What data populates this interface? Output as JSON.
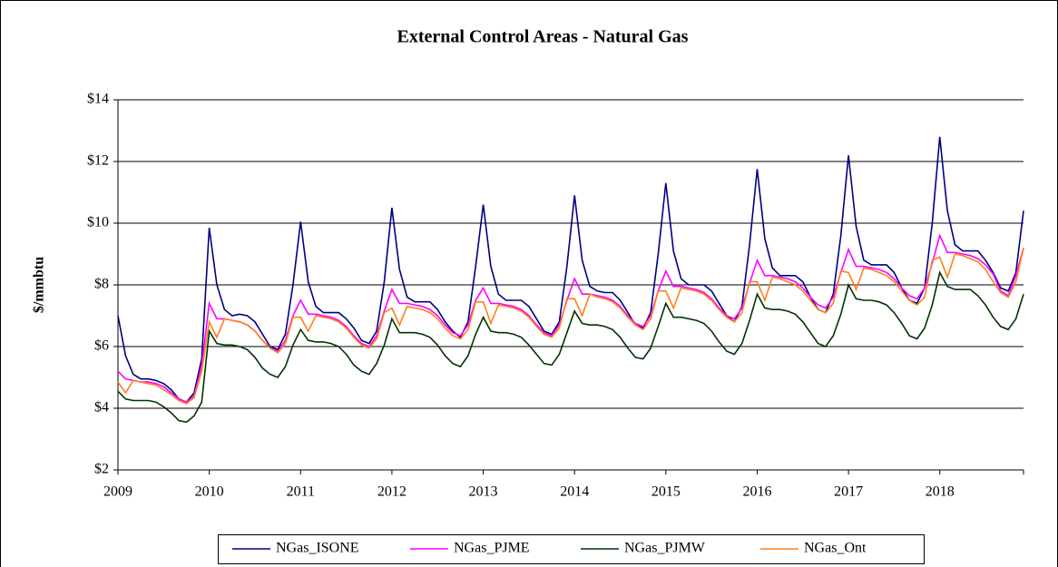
{
  "chart_data": {
    "type": "line",
    "title": "External Control Areas - Natural Gas",
    "y_label": "$/mmbtu",
    "categories": [
      "2009",
      null,
      null,
      null,
      null,
      null,
      null,
      null,
      null,
      null,
      null,
      null,
      "2010",
      null,
      null,
      null,
      null,
      null,
      null,
      null,
      null,
      null,
      null,
      null,
      "2011",
      null,
      null,
      null,
      null,
      null,
      null,
      null,
      null,
      null,
      null,
      null,
      "2012",
      null,
      null,
      null,
      null,
      null,
      null,
      null,
      null,
      null,
      null,
      null,
      "2013",
      null,
      null,
      null,
      null,
      null,
      null,
      null,
      null,
      null,
      null,
      null,
      "2014",
      null,
      null,
      null,
      null,
      null,
      null,
      null,
      null,
      null,
      null,
      null,
      "2015",
      null,
      null,
      null,
      null,
      null,
      null,
      null,
      null,
      null,
      null,
      null,
      "2016",
      null,
      null,
      null,
      null,
      null,
      null,
      null,
      null,
      null,
      null,
      null,
      "2017",
      null,
      null,
      null,
      null,
      null,
      null,
      null,
      null,
      null,
      null,
      null,
      "2018",
      null,
      null,
      null,
      null,
      null,
      null,
      null,
      null,
      null,
      null,
      null
    ],
    "ylim": [
      2,
      14
    ],
    "yticks": [
      {
        "value": 2,
        "label": "$2"
      },
      {
        "value": 4,
        "label": "$4"
      },
      {
        "value": 6,
        "label": "$6"
      },
      {
        "value": 8,
        "label": "$8"
      },
      {
        "value": 10,
        "label": "$10"
      },
      {
        "value": 12,
        "label": "$12"
      },
      {
        "value": 14,
        "label": "$14"
      }
    ],
    "grid": true,
    "legend": "bottom",
    "series": [
      {
        "name": "NGas_ISONE",
        "color": "#000080",
        "values": [
          7.0,
          5.7,
          5.1,
          4.95,
          4.95,
          4.9,
          4.8,
          4.6,
          4.3,
          4.2,
          4.5,
          5.6,
          9.85,
          8.0,
          7.2,
          7.0,
          7.05,
          7.0,
          6.8,
          6.4,
          6.0,
          5.9,
          6.4,
          8.0,
          10.05,
          8.1,
          7.3,
          7.1,
          7.1,
          7.1,
          6.9,
          6.6,
          6.2,
          6.1,
          6.5,
          8.1,
          10.5,
          8.5,
          7.6,
          7.45,
          7.45,
          7.45,
          7.2,
          6.8,
          6.5,
          6.3,
          6.8,
          8.6,
          10.6,
          8.6,
          7.7,
          7.5,
          7.5,
          7.5,
          7.3,
          6.9,
          6.5,
          6.4,
          6.8,
          8.6,
          10.9,
          8.8,
          7.95,
          7.8,
          7.75,
          7.75,
          7.5,
          7.1,
          6.7,
          6.6,
          7.1,
          9.0,
          11.3,
          9.1,
          8.2,
          8.0,
          8.0,
          8.0,
          7.8,
          7.4,
          7.0,
          6.8,
          7.3,
          9.3,
          11.75,
          9.5,
          8.55,
          8.3,
          8.3,
          8.3,
          8.1,
          7.6,
          7.2,
          7.1,
          7.7,
          9.6,
          12.2,
          9.9,
          8.8,
          8.65,
          8.65,
          8.65,
          8.4,
          7.9,
          7.5,
          7.4,
          7.9,
          10.0,
          12.8,
          10.4,
          9.3,
          9.1,
          9.1,
          9.1,
          8.8,
          8.4,
          7.9,
          7.8,
          8.4,
          10.4
        ]
      },
      {
        "name": "NGas_PJME",
        "color": "#ff00ff",
        "values": [
          5.2,
          4.95,
          4.9,
          4.85,
          4.85,
          4.8,
          4.7,
          4.5,
          4.3,
          4.2,
          4.4,
          5.4,
          7.4,
          6.9,
          6.9,
          6.85,
          6.8,
          6.7,
          6.5,
          6.2,
          5.95,
          5.85,
          6.2,
          7.0,
          7.5,
          7.05,
          7.05,
          7.0,
          6.95,
          6.85,
          6.65,
          6.35,
          6.1,
          6.0,
          6.35,
          7.15,
          7.85,
          7.4,
          7.4,
          7.35,
          7.3,
          7.2,
          7.0,
          6.7,
          6.45,
          6.35,
          6.7,
          7.5,
          7.9,
          7.4,
          7.4,
          7.35,
          7.3,
          7.2,
          7.0,
          6.7,
          6.45,
          6.35,
          6.7,
          7.5,
          8.2,
          7.7,
          7.7,
          7.65,
          7.6,
          7.5,
          7.3,
          7.0,
          6.75,
          6.65,
          7.0,
          7.8,
          8.45,
          7.95,
          7.95,
          7.9,
          7.85,
          7.75,
          7.55,
          7.25,
          7.0,
          6.9,
          7.25,
          8.05,
          8.8,
          8.3,
          8.3,
          8.25,
          8.2,
          8.1,
          7.9,
          7.6,
          7.35,
          7.25,
          7.6,
          8.4,
          9.15,
          8.6,
          8.6,
          8.55,
          8.5,
          8.4,
          8.2,
          7.9,
          7.65,
          7.55,
          7.9,
          8.7,
          9.6,
          9.05,
          9.05,
          9.0,
          8.95,
          8.85,
          8.65,
          8.35,
          7.8,
          7.65,
          8.3,
          9.2
        ]
      },
      {
        "name": "NGas_PJMW",
        "color": "#003300",
        "values": [
          4.55,
          4.3,
          4.25,
          4.25,
          4.25,
          4.2,
          4.05,
          3.85,
          3.6,
          3.55,
          3.75,
          4.2,
          6.5,
          6.1,
          6.05,
          6.05,
          6.0,
          5.9,
          5.65,
          5.3,
          5.1,
          5.0,
          5.35,
          6.05,
          6.55,
          6.2,
          6.15,
          6.15,
          6.1,
          6.0,
          5.75,
          5.4,
          5.2,
          5.1,
          5.45,
          6.05,
          6.9,
          6.45,
          6.45,
          6.45,
          6.4,
          6.3,
          6.05,
          5.7,
          5.45,
          5.35,
          5.7,
          6.4,
          6.95,
          6.5,
          6.45,
          6.45,
          6.4,
          6.3,
          6.05,
          5.75,
          5.45,
          5.4,
          5.75,
          6.45,
          7.15,
          6.75,
          6.7,
          6.7,
          6.65,
          6.55,
          6.3,
          5.95,
          5.65,
          5.6,
          5.95,
          6.65,
          7.4,
          6.95,
          6.95,
          6.9,
          6.85,
          6.75,
          6.5,
          6.15,
          5.85,
          5.75,
          6.1,
          6.85,
          7.7,
          7.25,
          7.2,
          7.2,
          7.15,
          7.05,
          6.8,
          6.45,
          6.1,
          6.0,
          6.35,
          7.05,
          8.0,
          7.55,
          7.5,
          7.5,
          7.45,
          7.35,
          7.1,
          6.75,
          6.35,
          6.25,
          6.6,
          7.35,
          8.4,
          7.95,
          7.85,
          7.85,
          7.85,
          7.65,
          7.35,
          6.95,
          6.65,
          6.55,
          6.9,
          7.7
        ]
      },
      {
        "name": "NGas_Ont",
        "color": "#ff7f1f",
        "values": [
          4.85,
          4.5,
          4.9,
          4.85,
          4.8,
          4.75,
          4.6,
          4.45,
          4.25,
          4.15,
          4.35,
          5.2,
          6.8,
          6.3,
          6.9,
          6.85,
          6.8,
          6.7,
          6.5,
          6.2,
          5.95,
          5.8,
          6.1,
          6.95,
          6.95,
          6.5,
          7.0,
          6.95,
          6.9,
          6.8,
          6.6,
          6.3,
          6.05,
          5.95,
          6.25,
          7.1,
          7.25,
          6.7,
          7.3,
          7.25,
          7.2,
          7.1,
          6.9,
          6.6,
          6.35,
          6.25,
          6.55,
          7.45,
          7.45,
          6.75,
          7.35,
          7.3,
          7.25,
          7.15,
          6.95,
          6.65,
          6.4,
          6.3,
          6.6,
          7.55,
          7.55,
          7.0,
          7.7,
          7.6,
          7.55,
          7.45,
          7.25,
          6.95,
          6.7,
          6.55,
          6.9,
          7.8,
          7.8,
          7.25,
          7.9,
          7.85,
          7.8,
          7.7,
          7.5,
          7.2,
          6.95,
          6.8,
          7.1,
          8.1,
          8.1,
          7.5,
          8.25,
          8.2,
          8.1,
          8.0,
          7.8,
          7.5,
          7.2,
          7.1,
          7.4,
          8.45,
          8.4,
          7.85,
          8.55,
          8.5,
          8.4,
          8.3,
          8.1,
          7.8,
          7.5,
          7.35,
          7.6,
          8.8,
          8.9,
          8.25,
          9.0,
          8.95,
          8.85,
          8.75,
          8.5,
          8.1,
          7.75,
          7.6,
          8.1,
          9.2
        ]
      }
    ]
  }
}
